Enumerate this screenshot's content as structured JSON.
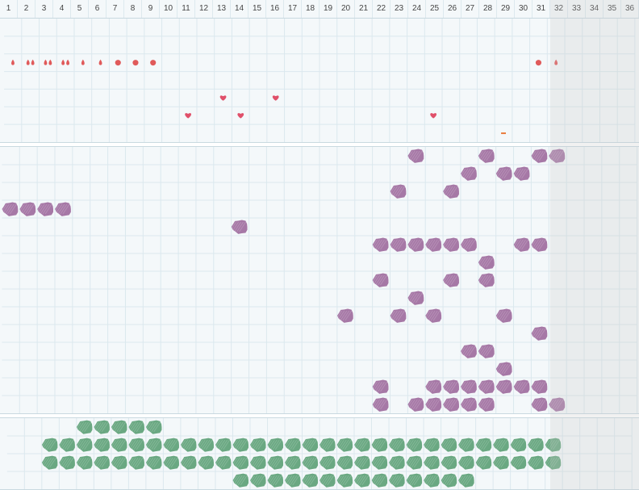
{
  "days": [
    "1",
    "2",
    "3",
    "4",
    "5",
    "6",
    "7",
    "8",
    "9",
    "10",
    "11",
    "12",
    "13",
    "14",
    "15",
    "16",
    "17",
    "18",
    "19",
    "20",
    "21",
    "22",
    "23",
    "24",
    "25",
    "26",
    "27",
    "28",
    "29",
    "30",
    "31",
    "32",
    "33",
    "34",
    "35",
    "36"
  ],
  "colors": {
    "drop": "#e05a5a",
    "heart": "#e0506a",
    "dash": "#e97a3a",
    "purple_blob": "#a678a6",
    "green_blob": "#6aa882",
    "grid_line": "#dbe8ee",
    "background": "#f4f8fa",
    "shaded_days": "#e6e8e9"
  },
  "shaded_day_range": [
    "32",
    "36"
  ],
  "top_section": {
    "rows": 7,
    "markers": [
      {
        "row": 2,
        "day": 1,
        "icon": "drop-single-icon"
      },
      {
        "row": 2,
        "day": 2,
        "icon": "drop-double-icon"
      },
      {
        "row": 2,
        "day": 3,
        "icon": "drop-double-icon"
      },
      {
        "row": 2,
        "day": 4,
        "icon": "drop-double-icon"
      },
      {
        "row": 2,
        "day": 5,
        "icon": "drop-single-icon"
      },
      {
        "row": 2,
        "day": 6,
        "icon": "drop-single-icon"
      },
      {
        "row": 2,
        "day": 7,
        "icon": "dot-icon"
      },
      {
        "row": 2,
        "day": 8,
        "icon": "dot-icon"
      },
      {
        "row": 2,
        "day": 9,
        "icon": "dot-icon"
      },
      {
        "row": 2,
        "day": 31,
        "icon": "dot-icon"
      },
      {
        "row": 2,
        "day": 32,
        "icon": "drop-single-icon"
      },
      {
        "row": 4,
        "day": 13,
        "icon": "heart-icon"
      },
      {
        "row": 4,
        "day": 16,
        "icon": "heart-icon"
      },
      {
        "row": 5,
        "day": 11,
        "icon": "heart-icon"
      },
      {
        "row": 5,
        "day": 14,
        "icon": "heart-icon"
      },
      {
        "row": 5,
        "day": 25,
        "icon": "heart-icon"
      },
      {
        "row": 6,
        "day": 29,
        "icon": "dash-icon"
      }
    ]
  },
  "middle_section": {
    "rows": 15,
    "blobs": [
      [
        0,
        24
      ],
      [
        0,
        28
      ],
      [
        0,
        31
      ],
      [
        0,
        32
      ],
      [
        1,
        27
      ],
      [
        1,
        29
      ],
      [
        1,
        30
      ],
      [
        2,
        23
      ],
      [
        2,
        26
      ],
      [
        3,
        1
      ],
      [
        3,
        2
      ],
      [
        3,
        3
      ],
      [
        3,
        4
      ],
      [
        4,
        14
      ],
      [
        5,
        22
      ],
      [
        5,
        23
      ],
      [
        5,
        24
      ],
      [
        5,
        25
      ],
      [
        5,
        26
      ],
      [
        5,
        27
      ],
      [
        5,
        30
      ],
      [
        5,
        31
      ],
      [
        6,
        28
      ],
      [
        7,
        22
      ],
      [
        7,
        26
      ],
      [
        7,
        28
      ],
      [
        8,
        24
      ],
      [
        9,
        20
      ],
      [
        9,
        23
      ],
      [
        9,
        25
      ],
      [
        9,
        29
      ],
      [
        10,
        31
      ],
      [
        11,
        27
      ],
      [
        11,
        28
      ],
      [
        12,
        29
      ],
      [
        13,
        22
      ],
      [
        13,
        25
      ],
      [
        13,
        26
      ],
      [
        13,
        27
      ],
      [
        13,
        28
      ],
      [
        13,
        29
      ],
      [
        13,
        30
      ],
      [
        13,
        31
      ],
      [
        14,
        22
      ],
      [
        14,
        24
      ],
      [
        14,
        25
      ],
      [
        14,
        26
      ],
      [
        14,
        27
      ],
      [
        14,
        28
      ],
      [
        14,
        31
      ],
      [
        14,
        32
      ]
    ]
  },
  "bottom_section": {
    "rows": 4,
    "blobs": [
      [
        0,
        5
      ],
      [
        0,
        6
      ],
      [
        0,
        7
      ],
      [
        0,
        8
      ],
      [
        0,
        9
      ],
      [
        1,
        3
      ],
      [
        1,
        4
      ],
      [
        1,
        5
      ],
      [
        1,
        6
      ],
      [
        1,
        7
      ],
      [
        1,
        8
      ],
      [
        1,
        9
      ],
      [
        1,
        10
      ],
      [
        1,
        11
      ],
      [
        1,
        12
      ],
      [
        1,
        13
      ],
      [
        1,
        14
      ],
      [
        1,
        15
      ],
      [
        1,
        16
      ],
      [
        1,
        17
      ],
      [
        1,
        18
      ],
      [
        1,
        19
      ],
      [
        1,
        20
      ],
      [
        1,
        21
      ],
      [
        1,
        22
      ],
      [
        1,
        23
      ],
      [
        1,
        24
      ],
      [
        1,
        25
      ],
      [
        1,
        26
      ],
      [
        1,
        27
      ],
      [
        1,
        28
      ],
      [
        1,
        29
      ],
      [
        1,
        30
      ],
      [
        1,
        31
      ],
      [
        1,
        32
      ],
      [
        2,
        3
      ],
      [
        2,
        4
      ],
      [
        2,
        5
      ],
      [
        2,
        6
      ],
      [
        2,
        7
      ],
      [
        2,
        8
      ],
      [
        2,
        9
      ],
      [
        2,
        10
      ],
      [
        2,
        11
      ],
      [
        2,
        12
      ],
      [
        2,
        13
      ],
      [
        2,
        14
      ],
      [
        2,
        15
      ],
      [
        2,
        16
      ],
      [
        2,
        17
      ],
      [
        2,
        18
      ],
      [
        2,
        19
      ],
      [
        2,
        20
      ],
      [
        2,
        21
      ],
      [
        2,
        22
      ],
      [
        2,
        23
      ],
      [
        2,
        24
      ],
      [
        2,
        25
      ],
      [
        2,
        26
      ],
      [
        2,
        27
      ],
      [
        2,
        28
      ],
      [
        2,
        29
      ],
      [
        2,
        30
      ],
      [
        2,
        31
      ],
      [
        2,
        32
      ],
      [
        3,
        14
      ],
      [
        3,
        15
      ],
      [
        3,
        16
      ],
      [
        3,
        17
      ],
      [
        3,
        18
      ],
      [
        3,
        19
      ],
      [
        3,
        20
      ],
      [
        3,
        21
      ],
      [
        3,
        22
      ],
      [
        3,
        23
      ],
      [
        3,
        24
      ],
      [
        3,
        25
      ],
      [
        3,
        26
      ],
      [
        3,
        27
      ]
    ]
  }
}
